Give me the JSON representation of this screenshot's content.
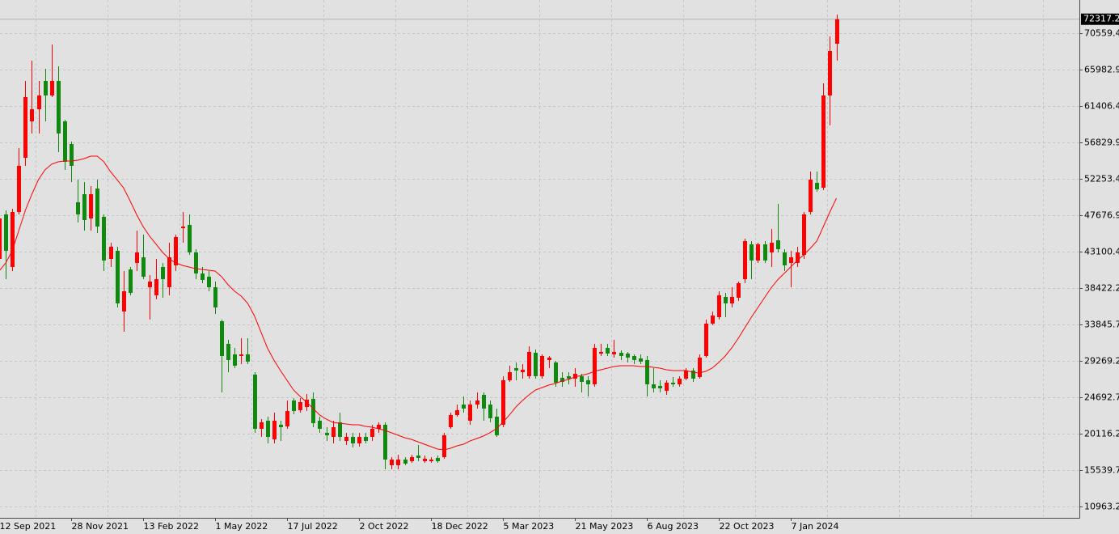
{
  "chart_data": {
    "type": "candlestick",
    "up_color": "#ff0000",
    "down_color": "#0f8a0f",
    "grid": true,
    "ylim": [
      9537,
      74736
    ],
    "yticks": [
      {
        "value": 70559.4,
        "label": "70559.40"
      },
      {
        "value": 65982.9,
        "label": "65982.90"
      },
      {
        "value": 61406.4,
        "label": "61406.40"
      },
      {
        "value": 56829.9,
        "label": "56829.90"
      },
      {
        "value": 52253.4,
        "label": "52253.40"
      },
      {
        "value": 47676.9,
        "label": "47676.90"
      },
      {
        "value": 43100.4,
        "label": "43100.40"
      },
      {
        "value": 38422.2,
        "label": "38422.20"
      },
      {
        "value": 33845.7,
        "label": "33845.70"
      },
      {
        "value": 29269.2,
        "label": "29269.20"
      },
      {
        "value": 24692.7,
        "label": "24692.70"
      },
      {
        "value": 20116.2,
        "label": "20116.20"
      },
      {
        "value": 15539.7,
        "label": "15539.70"
      },
      {
        "value": 10963.2,
        "label": "10963.20"
      }
    ],
    "last_price": {
      "value": 72317.2,
      "label": "72317.20"
    },
    "categories": [
      "12 Sep 2021",
      null,
      null,
      null,
      null,
      null,
      null,
      null,
      null,
      null,
      null,
      "28 Nov 2021",
      null,
      null,
      null,
      null,
      null,
      null,
      null,
      null,
      null,
      null,
      "13 Feb 2022",
      null,
      null,
      null,
      null,
      null,
      null,
      null,
      null,
      null,
      null,
      "1 May 2022",
      null,
      null,
      null,
      null,
      null,
      null,
      null,
      null,
      null,
      null,
      "17 Jul 2022",
      null,
      null,
      null,
      null,
      null,
      null,
      null,
      null,
      null,
      null,
      "2 Oct 2022",
      null,
      null,
      null,
      null,
      null,
      null,
      null,
      null,
      null,
      null,
      "18 Dec 2022",
      null,
      null,
      null,
      null,
      null,
      null,
      null,
      null,
      null,
      null,
      "5 Mar 2023",
      null,
      null,
      null,
      null,
      null,
      null,
      null,
      null,
      null,
      null,
      "21 May 2023",
      null,
      null,
      null,
      null,
      null,
      null,
      null,
      null,
      null,
      null,
      "6 Aug 2023",
      null,
      null,
      null,
      null,
      null,
      null,
      null,
      null,
      null,
      null,
      "22 Oct 2023",
      null,
      null,
      null,
      null,
      null,
      null,
      null,
      null,
      null,
      null,
      "7 Jan 2024",
      null,
      null,
      null,
      null,
      null,
      null,
      null
    ],
    "open": [
      42138,
      47740,
      41119,
      48046,
      54871,
      59455,
      60984,
      64549,
      62715,
      64549,
      59455,
      56603,
      49268,
      50287,
      47231,
      51000,
      47435,
      42138,
      43156,
      35516,
      40813,
      41628,
      42341,
      38572,
      37553,
      41119,
      38572,
      41323,
      46009,
      46416,
      42953,
      40304,
      39896,
      38572,
      34294,
      31441,
      30117,
      29913,
      30117,
      27570,
      20745,
      21764,
      19421,
      21254,
      21051,
      24310,
      23088,
      23495,
      24514,
      21764,
      20236,
      19726,
      21560,
      19217,
      19726,
      18911,
      19726,
      19726,
      20745,
      21254,
      16161,
      16161,
      16874,
      16670,
      17383,
      16670,
      16670,
      17078,
      17179,
      20949,
      22477,
      23801,
      21764,
      23801,
      25023,
      23801,
      22273,
      21254,
      26857,
      28385,
      27876,
      27366,
      30321,
      27366,
      29404,
      29098,
      27163,
      27366,
      27061,
      27366,
      26857,
      26348,
      30219,
      30932,
      30117,
      30321,
      30219,
      29913,
      29608,
      29404,
      26348,
      26144,
      25533,
      26551,
      26348,
      27061,
      28080,
      27265,
      29913,
      33988,
      34803,
      37350,
      36535,
      37248,
      39591,
      43971,
      41934,
      43971,
      42953,
      44481,
      42953,
      41628,
      41628,
      42647,
      48046,
      51713,
      51102,
      62715,
      69235
    ],
    "high": [
      47740,
      48250,
      48454,
      56094,
      64549,
      67096,
      64549,
      66077,
      69133,
      66383,
      59659,
      56909,
      52121,
      51815,
      51306,
      52121,
      47740,
      44175,
      43666,
      40610,
      41119,
      45703,
      45194,
      40100,
      42138,
      41628,
      44175,
      45194,
      48046,
      47740,
      43360,
      41119,
      40610,
      39285,
      34497,
      31951,
      30932,
      32154,
      32154,
      27876,
      21967,
      22273,
      22782,
      21764,
      24310,
      24616,
      24616,
      25125,
      25329,
      22273,
      20949,
      21764,
      22782,
      20236,
      20236,
      20236,
      20236,
      21254,
      21560,
      21560,
      17179,
      17485,
      17179,
      17485,
      18707,
      17383,
      17179,
      17383,
      20236,
      22782,
      23801,
      24820,
      24310,
      25329,
      25329,
      24310,
      23292,
      27366,
      28691,
      29098,
      28894,
      31136,
      30728,
      30117,
      29913,
      29302,
      27876,
      27876,
      28385,
      27672,
      27366,
      31441,
      31441,
      31441,
      31951,
      30626,
      30423,
      30117,
      30117,
      29913,
      28385,
      26857,
      26857,
      27265,
      27366,
      28385,
      28385,
      30117,
      34497,
      35516,
      38063,
      37859,
      38572,
      39285,
      44684,
      44379,
      44175,
      44379,
      45907,
      49065,
      43360,
      43156,
      43666,
      48046,
      53140,
      53140,
      64243,
      70152,
      72902
    ],
    "low": [
      41119,
      39591,
      40610,
      47740,
      53853,
      57927,
      57927,
      59455,
      62512,
      55584,
      53343,
      51815,
      46722,
      45703,
      45703,
      45397,
      40610,
      41119,
      36025,
      32969,
      37553,
      40610,
      39591,
      34497,
      37044,
      37248,
      37553,
      40610,
      44175,
      42647,
      39591,
      39081,
      38063,
      35210,
      25329,
      27876,
      28385,
      28894,
      28894,
      20236,
      19726,
      18911,
      18911,
      19217,
      20745,
      22579,
      22782,
      22986,
      20949,
      20236,
      19217,
      18911,
      19217,
      18707,
      18402,
      18504,
      18911,
      19217,
      20236,
      15651,
      15651,
      15651,
      16161,
      16466,
      16670,
      16466,
      16466,
      16466,
      16976,
      20745,
      22273,
      22782,
      21254,
      23292,
      21764,
      21560,
      19726,
      20949,
      26653,
      26857,
      27061,
      27061,
      27061,
      27061,
      28385,
      26042,
      26042,
      26348,
      26042,
      25329,
      24820,
      26042,
      29913,
      29913,
      29709,
      29404,
      29098,
      28894,
      28894,
      24820,
      25329,
      25329,
      25023,
      26042,
      26042,
      26857,
      26653,
      27061,
      29709,
      33784,
      34497,
      34803,
      36025,
      36840,
      39081,
      39591,
      41628,
      41628,
      41119,
      42953,
      40610,
      38572,
      41119,
      42138,
      47740,
      50593,
      50797,
      58946,
      67096
    ],
    "close": [
      47231,
      43156,
      48046,
      53853,
      62512,
      60984,
      62715,
      62715,
      64549,
      57927,
      54362,
      53853,
      47740,
      47027,
      50287,
      46212,
      41934,
      43666,
      36535,
      38063,
      37859,
      42953,
      39896,
      39285,
      39591,
      39591,
      42341,
      44888,
      46212,
      42953,
      40304,
      39489,
      38572,
      36025,
      29913,
      29404,
      28691,
      30117,
      29200,
      20745,
      21560,
      19726,
      21764,
      20949,
      22986,
      22986,
      24107,
      24412,
      21458,
      20745,
      19930,
      20949,
      19726,
      19726,
      18911,
      19726,
      19217,
      20745,
      21254,
      16874,
      16874,
      16874,
      16364,
      17179,
      17078,
      16976,
      16874,
      16670,
      19930,
      22477,
      23088,
      23292,
      23801,
      24310,
      23292,
      22069,
      19930,
      26857,
      27876,
      28080,
      28181,
      30423,
      27366,
      29913,
      29709,
      26551,
      26653,
      27061,
      27672,
      26653,
      26348,
      30932,
      30423,
      30219,
      30423,
      29913,
      29709,
      29404,
      29200,
      26348,
      25838,
      25838,
      26551,
      26348,
      27061,
      28080,
      27061,
      29709,
      33988,
      35007,
      37553,
      36535,
      37350,
      39081,
      44379,
      41934,
      43971,
      41934,
      44175,
      43360,
      41323,
      42341,
      42953,
      47740,
      52121,
      50898,
      62715,
      68318,
      72317.2
    ],
    "overlay": {
      "color": "#ff0000",
      "values": [
        40610,
        41628,
        43156,
        45703,
        48250,
        50287,
        52121,
        53343,
        54056,
        54362,
        54464,
        54464,
        54566,
        54769,
        55075,
        55075,
        54362,
        53140,
        52121,
        51102,
        49472,
        47740,
        46212,
        44990,
        43971,
        42953,
        42138,
        41628,
        41323,
        41119,
        40915,
        40813,
        40711,
        40610,
        39896,
        38878,
        38063,
        37452,
        36535,
        35007,
        32969,
        30932,
        29404,
        28080,
        26857,
        25635,
        24820,
        24107,
        23292,
        22477,
        21967,
        21560,
        21458,
        21356,
        21254,
        21254,
        21051,
        20949,
        20745,
        20541,
        20236,
        19930,
        19624,
        19421,
        19115,
        18809,
        18504,
        18198,
        18096,
        18300,
        18606,
        18809,
        19217,
        19522,
        19828,
        20236,
        20745,
        21560,
        22477,
        23495,
        24310,
        25023,
        25635,
        25940,
        26246,
        26450,
        26755,
        26959,
        27265,
        27468,
        27672,
        27978,
        28181,
        28385,
        28589,
        28691,
        28691,
        28691,
        28589,
        28589,
        28487,
        28385,
        28181,
        28080,
        28080,
        28080,
        27876,
        27774,
        27978,
        28385,
        29098,
        29913,
        30932,
        32154,
        33479,
        34803,
        36025,
        37248,
        38470,
        39489,
        40304,
        41119,
        41934,
        42647,
        43462,
        44379,
        46212,
        48046,
        49778
      ]
    }
  }
}
